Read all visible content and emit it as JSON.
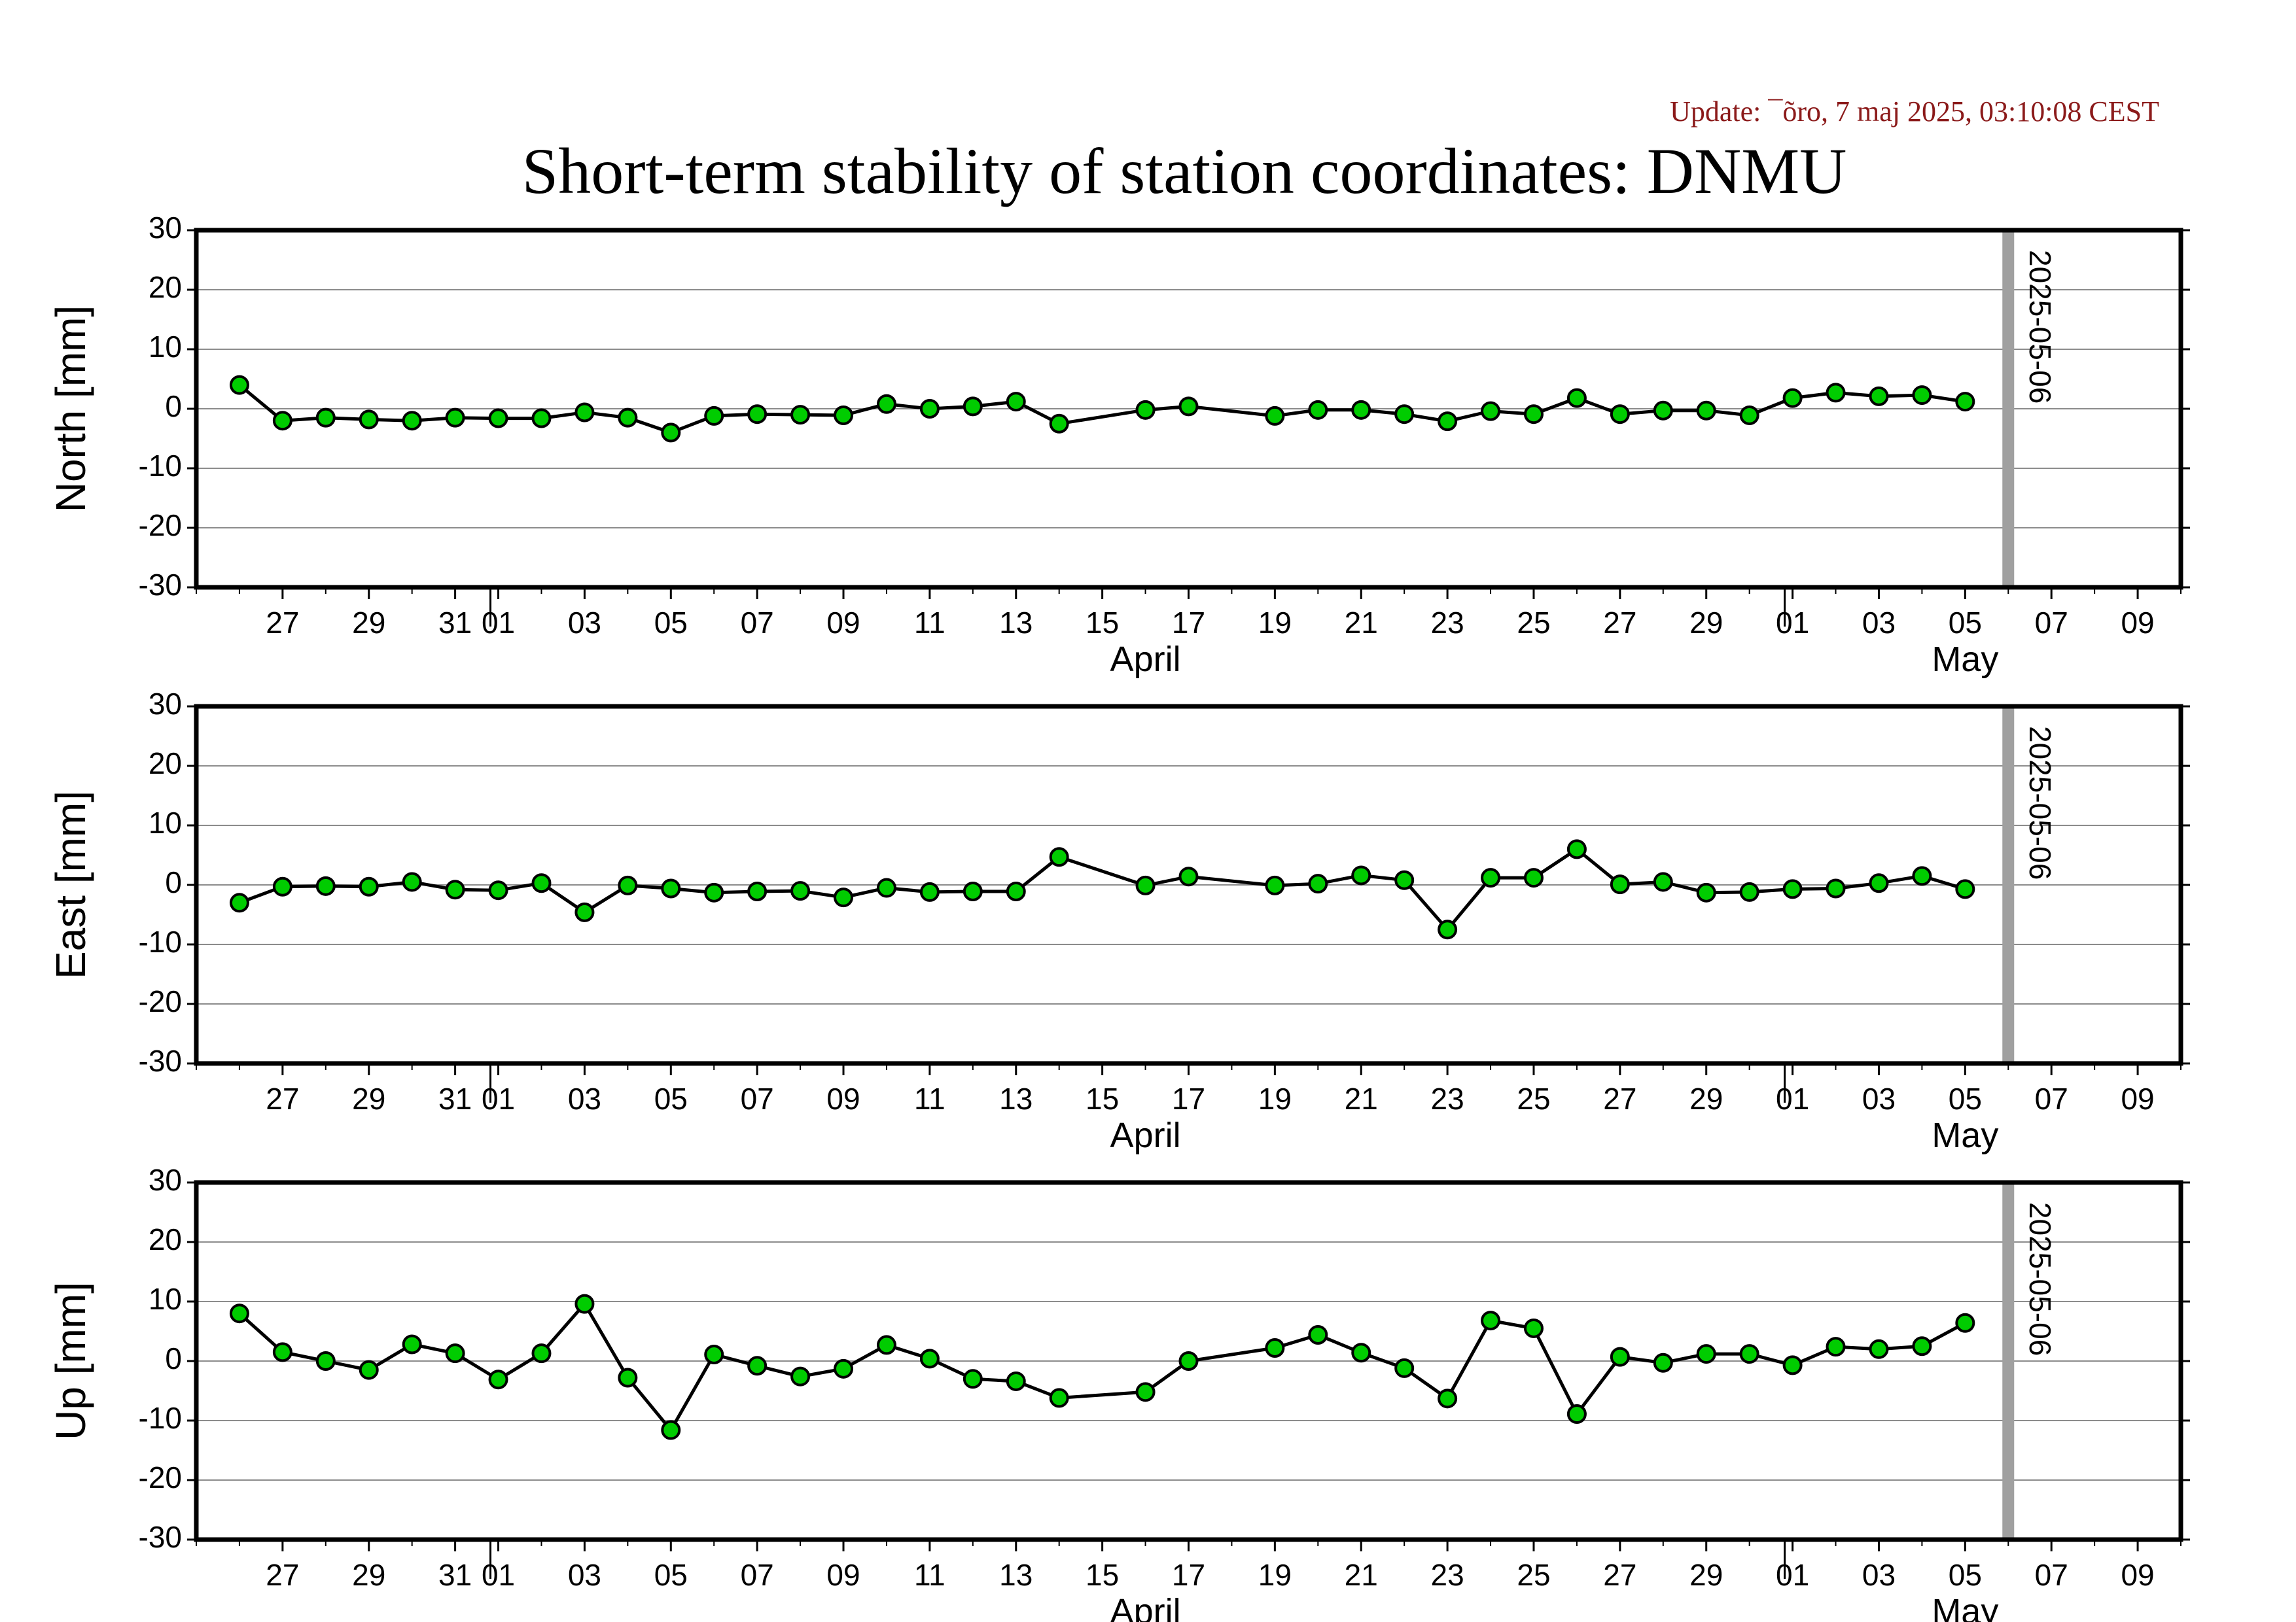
{
  "update_text": "Update: ¯õro, 7 maj 2025, 03:10:08 CEST",
  "chart_data": {
    "type": "line",
    "title": "Short-term stability of station coordinates: DNMU",
    "x_range": [
      "2025-03-25",
      "2025-05-10"
    ],
    "y_range": [
      -30,
      30
    ],
    "y_ticks": [
      30,
      20,
      10,
      0,
      -10,
      -20,
      -30
    ],
    "y_tick_labels": [
      "30",
      "20",
      "10",
      "0",
      "-10",
      "-20",
      "-30"
    ],
    "grid": true,
    "x_tick_dates": [
      "2025-03-27",
      "2025-03-29",
      "2025-03-31",
      "2025-04-01",
      "2025-04-03",
      "2025-04-05",
      "2025-04-07",
      "2025-04-09",
      "2025-04-11",
      "2025-04-13",
      "2025-04-15",
      "2025-04-17",
      "2025-04-19",
      "2025-04-21",
      "2025-04-23",
      "2025-04-25",
      "2025-04-27",
      "2025-04-29",
      "2025-05-01",
      "2025-05-03",
      "2025-05-05",
      "2025-05-07",
      "2025-05-09"
    ],
    "x_tick_labels": [
      "27",
      "29",
      "31",
      "01",
      "03",
      "05",
      "07",
      "09",
      "11",
      "13",
      "15",
      "17",
      "19",
      "21",
      "23",
      "25",
      "27",
      "29",
      "01",
      "03",
      "05",
      "07",
      "09"
    ],
    "month_boundaries": [
      "2025-04-01",
      "2025-05-01"
    ],
    "month_labels": [
      {
        "text": "April",
        "date": "2025-04-16"
      },
      {
        "text": "May",
        "date": "2025-05-05"
      }
    ],
    "marker_line": {
      "date": "2025-05-06",
      "label": "2025-05-06",
      "color": "#a0a0a0"
    },
    "point_color": "#00cc00",
    "dates": [
      "2025-03-26",
      "2025-03-27",
      "2025-03-28",
      "2025-03-29",
      "2025-03-30",
      "2025-03-31",
      "2025-04-01",
      "2025-04-02",
      "2025-04-03",
      "2025-04-04",
      "2025-04-05",
      "2025-04-06",
      "2025-04-07",
      "2025-04-08",
      "2025-04-09",
      "2025-04-10",
      "2025-04-11",
      "2025-04-12",
      "2025-04-13",
      "2025-04-14",
      "2025-04-16",
      "2025-04-17",
      "2025-04-19",
      "2025-04-20",
      "2025-04-21",
      "2025-04-22",
      "2025-04-23",
      "2025-04-24",
      "2025-04-25",
      "2025-04-26",
      "2025-04-27",
      "2025-04-28",
      "2025-04-29",
      "2025-04-30",
      "2025-05-01",
      "2025-05-02",
      "2025-05-03",
      "2025-05-04",
      "2025-05-05"
    ],
    "panels": [
      {
        "ylabel": "North [mm]",
        "values": [
          4.0,
          -2.0,
          -1.5,
          -1.8,
          -2.0,
          -1.5,
          -1.6,
          -1.6,
          -0.6,
          -1.5,
          -4.0,
          -1.2,
          -0.9,
          -1.0,
          -1.1,
          0.8,
          0.0,
          0.4,
          1.2,
          -2.5,
          -0.2,
          0.4,
          -1.2,
          -0.2,
          -0.2,
          -0.9,
          -2.1,
          -0.4,
          -0.9,
          1.8,
          -0.9,
          -0.3,
          -0.3,
          -1.1,
          1.8,
          2.7,
          2.1,
          2.3,
          1.2
        ]
      },
      {
        "ylabel": "East [mm]",
        "values": [
          -3.0,
          -0.3,
          -0.2,
          -0.3,
          0.5,
          -0.8,
          -0.9,
          0.3,
          -4.6,
          -0.1,
          -0.6,
          -1.3,
          -1.1,
          -1.0,
          -2.1,
          -0.5,
          -1.2,
          -1.1,
          -1.1,
          4.7,
          -0.1,
          1.4,
          -0.1,
          0.2,
          1.6,
          0.8,
          -7.5,
          1.2,
          1.2,
          6.0,
          0.1,
          0.5,
          -1.3,
          -1.2,
          -0.7,
          -0.6,
          0.3,
          1.5,
          -0.7
        ]
      },
      {
        "ylabel": "Up [mm]",
        "values": [
          8.0,
          1.5,
          0.0,
          -1.5,
          2.8,
          1.3,
          -3.1,
          1.3,
          9.6,
          -2.8,
          -11.6,
          1.1,
          -0.8,
          -2.6,
          -1.3,
          2.7,
          0.4,
          -3.0,
          -3.4,
          -6.2,
          -5.2,
          0.0,
          2.2,
          4.4,
          1.4,
          -1.2,
          -6.3,
          6.8,
          5.5,
          -8.9,
          0.7,
          -0.3,
          1.2,
          1.2,
          -0.7,
          2.4,
          2.0,
          2.5,
          6.4
        ]
      }
    ]
  }
}
